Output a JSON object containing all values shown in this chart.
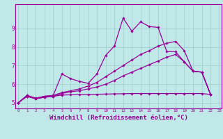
{
  "background_color": "#c0e8e8",
  "line_color": "#990099",
  "grid_color": "#a0cccc",
  "xlabel": "Windchill (Refroidissement éolien,°C)",
  "xlabel_fontsize": 6.5,
  "ytick_labels": [
    "5",
    "6",
    "7",
    "8",
    "9"
  ],
  "ytick_vals": [
    5,
    6,
    7,
    8,
    9
  ],
  "xtick_vals": [
    0,
    1,
    2,
    3,
    4,
    5,
    6,
    7,
    8,
    9,
    10,
    11,
    12,
    13,
    14,
    15,
    16,
    17,
    18,
    19,
    20,
    21,
    22,
    23
  ],
  "xlim": [
    -0.3,
    23.3
  ],
  "ylim": [
    4.7,
    10.3
  ],
  "series": [
    [
      5.0,
      5.4,
      5.25,
      5.35,
      5.4,
      6.55,
      6.3,
      6.15,
      6.05,
      6.55,
      7.55,
      8.05,
      9.55,
      8.85,
      9.35,
      9.1,
      9.05,
      7.75,
      7.75,
      7.2,
      6.7,
      6.65,
      5.45
    ],
    [
      5.0,
      5.4,
      5.25,
      5.35,
      5.4,
      5.55,
      5.65,
      5.75,
      5.9,
      6.1,
      6.4,
      6.7,
      7.0,
      7.3,
      7.6,
      7.8,
      8.05,
      8.2,
      8.3,
      7.8,
      6.7,
      6.65,
      5.45
    ],
    [
      5.0,
      5.35,
      5.22,
      5.3,
      5.35,
      5.42,
      5.43,
      5.44,
      5.45,
      5.46,
      5.47,
      5.48,
      5.49,
      5.5,
      5.5,
      5.5,
      5.5,
      5.5,
      5.5,
      5.5,
      5.5,
      5.5,
      5.45
    ],
    [
      5.0,
      5.35,
      5.22,
      5.3,
      5.35,
      5.5,
      5.6,
      5.65,
      5.75,
      5.85,
      6.0,
      6.2,
      6.45,
      6.65,
      6.85,
      7.05,
      7.25,
      7.45,
      7.6,
      7.2,
      6.7,
      6.65,
      5.45
    ]
  ]
}
